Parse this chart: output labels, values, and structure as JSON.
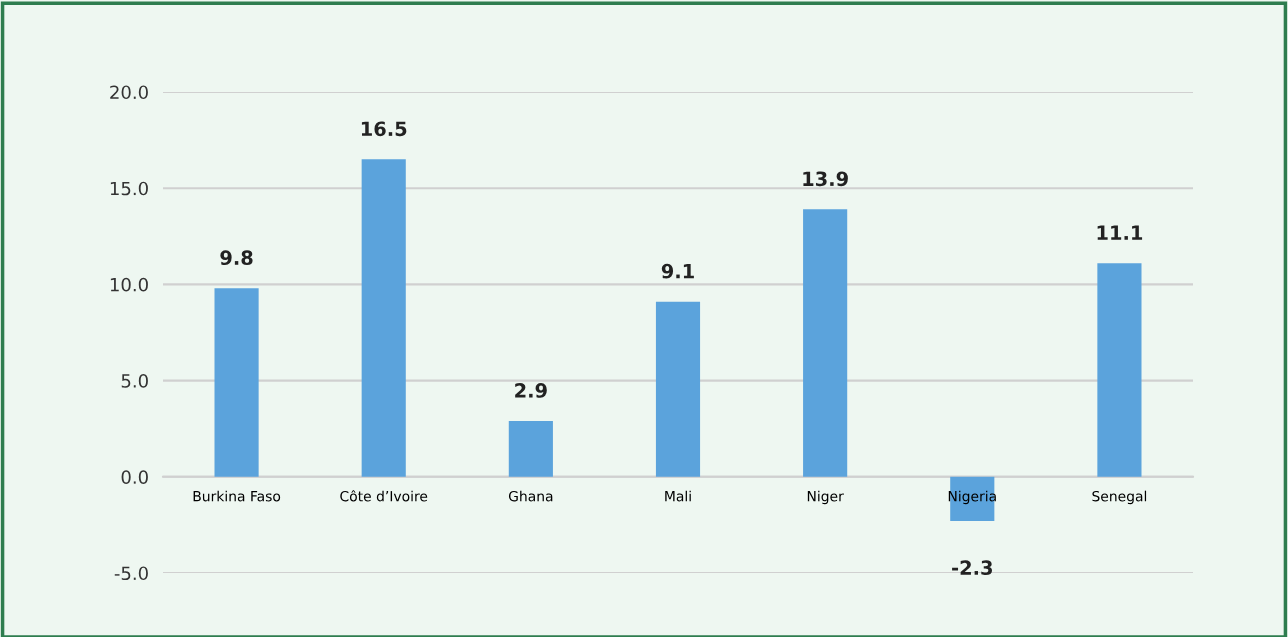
{
  "chart_data": {
    "type": "bar",
    "categories": [
      "Burkina Faso",
      "Côte d’Ivoire",
      "Ghana",
      "Mali",
      "Niger",
      "Nigeria",
      "Senegal"
    ],
    "values": [
      9.8,
      16.5,
      2.9,
      9.1,
      13.9,
      -2.3,
      11.1
    ],
    "color": "#5ba3dc",
    "ylim": [
      -5,
      20
    ],
    "yticks": [
      {
        "value": -5,
        "label": "-5.0"
      },
      {
        "value": 0,
        "label": "0.0"
      },
      {
        "value": 5,
        "label": "5.0"
      },
      {
        "value": 10,
        "label": "10.0"
      },
      {
        "value": 15,
        "label": "15.0"
      },
      {
        "value": 20,
        "label": "20.0"
      }
    ],
    "grid": "y",
    "data_labels": true
  }
}
